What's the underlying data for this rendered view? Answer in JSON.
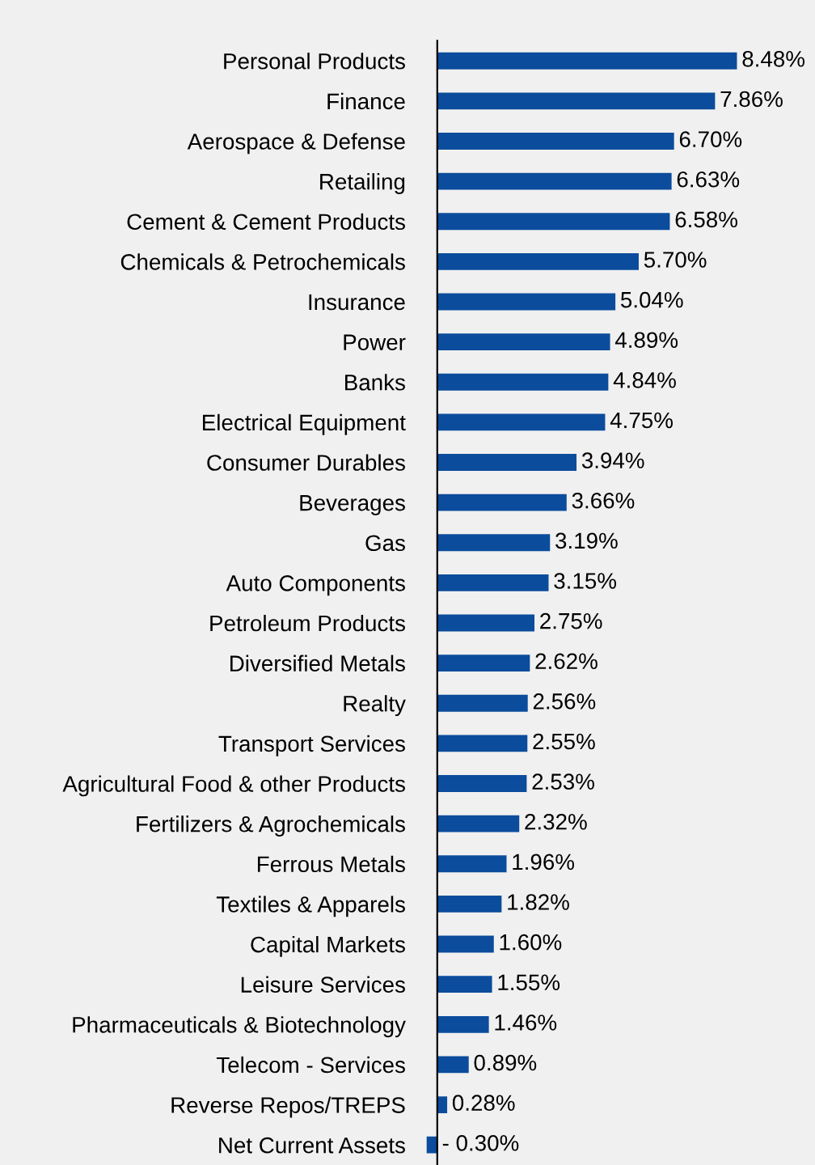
{
  "chart_data": {
    "type": "bar",
    "orientation": "horizontal",
    "color": "#0b4c9c",
    "categories": [
      "Personal Products",
      "Finance",
      "Aerospace & Defense",
      "Retailing",
      "Cement & Cement Products",
      "Chemicals & Petrochemicals",
      "Insurance",
      "Power",
      "Banks",
      "Electrical Equipment",
      "Consumer Durables",
      "Beverages",
      "Gas",
      "Auto Components",
      "Petroleum Products",
      "Diversified Metals",
      "Realty",
      "Transport Services",
      "Agricultural Food & other Products",
      "Fertilizers & Agrochemicals",
      "Ferrous Metals",
      "Textiles & Apparels",
      "Capital Markets",
      "Leisure Services",
      "Pharmaceuticals & Biotechnology",
      "Telecom - Services",
      "Reverse Repos/TREPS",
      "Net Current Assets"
    ],
    "values": [
      8.48,
      7.86,
      6.7,
      6.63,
      6.58,
      5.7,
      5.04,
      4.89,
      4.84,
      4.75,
      3.94,
      3.66,
      3.19,
      3.15,
      2.75,
      2.62,
      2.56,
      2.55,
      2.53,
      2.32,
      1.96,
      1.82,
      1.6,
      1.55,
      1.46,
      0.89,
      0.28,
      -0.3
    ],
    "value_labels": [
      "8.48%",
      "7.86%",
      "6.70%",
      "6.63%",
      "6.58%",
      "5.70%",
      "5.04%",
      "4.89%",
      "4.84%",
      "4.75%",
      "3.94%",
      "3.66%",
      "3.19%",
      "3.15%",
      "2.75%",
      "2.62%",
      "2.56%",
      "2.55%",
      "2.53%",
      "2.32%",
      "1.96%",
      "1.82%",
      "1.60%",
      "1.55%",
      "1.46%",
      "0.89%",
      "0.28%",
      "- 0.30%"
    ],
    "grid": false,
    "legend": false
  }
}
